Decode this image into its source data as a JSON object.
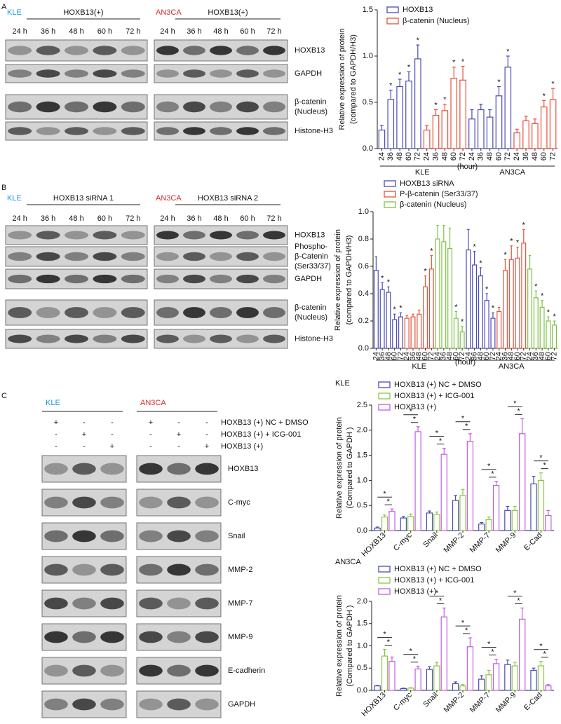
{
  "figure": {
    "panel_a": {
      "letter": "A",
      "cell_lines": [
        "KLE",
        "AN3CA"
      ],
      "conditions": [
        "HOXB13(+)",
        "HOXB13(+)"
      ],
      "times": [
        "24 h",
        "36 h",
        "48 h",
        "60 h",
        "72 h"
      ],
      "rows": [
        "HOXB13",
        "GAPDH",
        [
          "β-catenin",
          "(Nucleus)"
        ],
        "Histone-H3"
      ]
    },
    "panel_b": {
      "letter": "B",
      "cell_lines": [
        "KLE",
        "AN3CA"
      ],
      "conditions": [
        "HOXB13 siRNA 1",
        "HOXB13 siRNA 2"
      ],
      "times": [
        "24 h",
        "36 h",
        "48 h",
        "60 h",
        "72 h"
      ],
      "rows": [
        "HOXB13",
        [
          "Phospho-",
          "β-Catenin",
          "(Ser33/37)"
        ],
        "GAPDH",
        [
          "β-catenin",
          "(Nucleus)"
        ],
        "Histone-H3"
      ]
    },
    "panel_c": {
      "letter": "C",
      "cell_lines": [
        "KLE",
        "AN3CA"
      ],
      "treatments": [
        {
          "name": "HOXB13 (+) NC + DMSO",
          "signs": [
            "+",
            "-",
            "-"
          ]
        },
        {
          "name": "HOXB13 (+) + ICG-001",
          "signs": [
            "-",
            "+",
            "-"
          ]
        },
        {
          "name": "HOXB13 (+)",
          "signs": [
            "-",
            "-",
            "+"
          ]
        }
      ],
      "rows": [
        "HOXB13",
        "C-myc",
        "Snail",
        "MMP-2",
        "MMP-7",
        "MMP-9",
        "E-cadherin",
        "GAPDH"
      ]
    }
  },
  "chart_data": [
    {
      "type": "bar",
      "ylabel": [
        "Relative expression of protein",
        "(compared to GAPDH/H3)"
      ],
      "categories": [
        "24",
        "36",
        "48",
        "60",
        "72",
        "24",
        "36",
        "48",
        "60",
        "72",
        "24",
        "36",
        "48",
        "60",
        "72",
        "24",
        "36",
        "48",
        "60",
        "72"
      ],
      "group_labels": [
        "KLE",
        "AN3CA"
      ],
      "x_unit": "(hour)",
      "ylim": [
        0,
        1.5
      ],
      "yticks": [
        {
          "value": 0,
          "label": "0.0"
        },
        0.5,
        {
          "value": 1,
          "label": "1.0"
        },
        1.5
      ],
      "series": [
        {
          "name": "HOXB13",
          "color": "#4b4bb5",
          "values": [
            0.2,
            0.53,
            0.67,
            0.73,
            0.97,
            null,
            null,
            null,
            null,
            null,
            0.32,
            0.42,
            0.34,
            0.57,
            0.88,
            null,
            null,
            null,
            null,
            null
          ],
          "errors": [
            0.05,
            0.1,
            0.08,
            0.1,
            0.15,
            null,
            null,
            null,
            null,
            null,
            0.1,
            0.06,
            0.08,
            0.1,
            0.12,
            null,
            null,
            null,
            null,
            null
          ],
          "stars": [
            null,
            "*",
            "*",
            "*",
            "*",
            null,
            null,
            null,
            null,
            null,
            null,
            null,
            null,
            "*",
            "*",
            null,
            null,
            null,
            null,
            null
          ]
        },
        {
          "name": "β-catenin (Nucleus)",
          "color": "#e8503a",
          "values": [
            null,
            null,
            null,
            null,
            null,
            0.2,
            0.36,
            0.41,
            0.76,
            0.74,
            null,
            null,
            null,
            null,
            null,
            0.17,
            0.3,
            0.27,
            0.45,
            0.53
          ],
          "errors": [
            null,
            null,
            null,
            null,
            null,
            0.05,
            0.06,
            0.07,
            0.12,
            0.15,
            null,
            null,
            null,
            null,
            null,
            0.04,
            0.05,
            0.05,
            0.07,
            0.12
          ],
          "stars": [
            null,
            null,
            null,
            null,
            null,
            null,
            "*",
            "*",
            "*",
            "*",
            null,
            null,
            null,
            null,
            null,
            null,
            null,
            null,
            "*",
            "*"
          ]
        }
      ]
    },
    {
      "type": "bar",
      "ylabel": [
        "Relative expression of protein",
        "(compared to GAPDH/H3)"
      ],
      "categories": [
        "24",
        "36",
        "48",
        "60",
        "72",
        "24",
        "36",
        "48",
        "60",
        "72",
        "24",
        "36",
        "48",
        "60",
        "72",
        "24",
        "36",
        "48",
        "60",
        "72",
        "24",
        "36",
        "48",
        "60",
        "72",
        "24",
        "36",
        "48",
        "60",
        "72"
      ],
      "group_labels": [
        "KLE",
        "AN3CA"
      ],
      "x_unit": "(hour)",
      "ylim": [
        0,
        1
      ],
      "yticks": [
        {
          "value": 0,
          "label": "0.0"
        },
        0.2,
        0.4,
        0.6,
        0.8,
        {
          "value": 1,
          "label": "1.0"
        }
      ],
      "series": [
        {
          "name": "HOXB13 siRNA",
          "color": "#4b4bb5",
          "values": [
            0.57,
            0.43,
            0.41,
            0.21,
            0.23,
            null,
            null,
            null,
            null,
            null,
            null,
            null,
            null,
            null,
            null,
            0.72,
            0.61,
            0.53,
            0.35,
            0.22,
            null,
            null,
            null,
            null,
            null,
            null,
            null,
            null,
            null,
            null
          ],
          "errors": [
            0.1,
            0.05,
            0.04,
            0.04,
            0.03,
            null,
            null,
            null,
            null,
            null,
            null,
            null,
            null,
            null,
            null,
            0.15,
            0.1,
            0.06,
            0.05,
            0.04,
            null,
            null,
            null,
            null,
            null,
            null,
            null,
            null,
            null,
            null
          ],
          "stars": [
            null,
            "*",
            "*",
            "*",
            "*",
            null,
            null,
            null,
            null,
            null,
            null,
            null,
            null,
            null,
            null,
            null,
            "*",
            "*",
            "*",
            "*",
            null,
            null,
            null,
            null,
            null,
            null,
            null,
            null,
            null,
            null
          ]
        },
        {
          "name": "P-β-catenin (Ser33/37)",
          "color": "#e8503a",
          "values": [
            null,
            null,
            null,
            null,
            null,
            0.22,
            0.23,
            0.25,
            0.45,
            0.58,
            null,
            null,
            null,
            null,
            null,
            null,
            null,
            null,
            null,
            null,
            0.27,
            0.57,
            0.65,
            0.66,
            0.77,
            null,
            null,
            null,
            null,
            null
          ],
          "errors": [
            null,
            null,
            null,
            null,
            null,
            0.02,
            0.02,
            0.03,
            0.08,
            0.1,
            null,
            null,
            null,
            null,
            null,
            null,
            null,
            null,
            null,
            null,
            0.03,
            0.08,
            0.1,
            0.08,
            0.1,
            null,
            null,
            null,
            null,
            null
          ],
          "stars": [
            null,
            null,
            null,
            null,
            null,
            null,
            null,
            null,
            "*",
            "*",
            null,
            null,
            null,
            null,
            null,
            null,
            null,
            null,
            null,
            null,
            null,
            "*",
            "*",
            "*",
            "*",
            null,
            null,
            null,
            null,
            null
          ]
        },
        {
          "name": "β-catenin (Nucleus)",
          "color": "#7cc242",
          "values": [
            null,
            null,
            null,
            null,
            null,
            null,
            null,
            null,
            null,
            null,
            0.8,
            0.78,
            0.73,
            0.22,
            0.12,
            null,
            null,
            null,
            null,
            null,
            null,
            null,
            null,
            null,
            null,
            0.58,
            0.37,
            0.3,
            0.2,
            0.17
          ],
          "errors": [
            null,
            null,
            null,
            null,
            null,
            null,
            null,
            null,
            null,
            null,
            0.1,
            0.12,
            0.15,
            0.05,
            0.04,
            null,
            null,
            null,
            null,
            null,
            null,
            null,
            null,
            null,
            null,
            0.1,
            0.05,
            0.05,
            0.03,
            0.03
          ],
          "stars": [
            null,
            null,
            null,
            null,
            null,
            null,
            null,
            null,
            null,
            null,
            null,
            null,
            null,
            "*",
            "*",
            null,
            null,
            null,
            null,
            null,
            null,
            null,
            null,
            null,
            null,
            null,
            "*",
            "*",
            "*",
            "*"
          ]
        }
      ]
    },
    {
      "type": "bar",
      "title": "KLE",
      "ylabel": [
        "Relative expression of protein",
        "(Compared to GAPDH )"
      ],
      "categories": [
        "HOXB13",
        "C-myc",
        "Snail",
        "MMP-2",
        "MMP-7",
        "MMP-9",
        "E-Cad"
      ],
      "ylim": [
        0,
        2.5
      ],
      "yticks": [
        {
          "value": 0,
          "label": "0.0"
        },
        0.5,
        {
          "value": 1,
          "label": "1.0"
        },
        1.5,
        {
          "value": 2,
          "label": "2.0"
        },
        2.5
      ],
      "series": [
        {
          "name": "HOXB13 (+) NC + DMSO",
          "color": "#4b4bb5",
          "values": [
            0.05,
            0.25,
            0.35,
            0.6,
            0.13,
            0.4,
            0.93
          ],
          "errors": [
            0.02,
            0.03,
            0.04,
            0.1,
            0.03,
            0.08,
            0.15
          ],
          "stars": [
            "*",
            "*",
            "*",
            "*",
            "*",
            "*",
            "*"
          ]
        },
        {
          "name": "HOXB13 (+) + ICG-001",
          "color": "#8cc63f",
          "values": [
            0.27,
            0.28,
            0.32,
            0.7,
            0.22,
            0.4,
            1.0
          ],
          "errors": [
            0.04,
            0.05,
            0.05,
            0.12,
            0.05,
            0.08,
            0.15
          ],
          "stars": [
            "*",
            "*",
            "*",
            "*",
            "*",
            "*",
            "*"
          ]
        },
        {
          "name": "HOXB13 (+)",
          "color": "#c25ce0",
          "values": [
            0.38,
            1.97,
            1.52,
            1.78,
            0.9,
            1.93,
            0.3
          ],
          "errors": [
            0.05,
            0.1,
            0.12,
            0.15,
            0.08,
            0.3,
            0.1
          ]
        }
      ]
    },
    {
      "type": "bar",
      "title": "AN3CA",
      "ylabel": [
        "Relative expression of protein",
        "(Compared to GAPDH )"
      ],
      "categories": [
        "HOXB13",
        "C-myc",
        "Snail",
        "MMP-2",
        "MMP-7",
        "MMP-9",
        "E-Cad"
      ],
      "ylim": [
        0,
        2
      ],
      "yticks": [
        {
          "value": 0,
          "label": "0.0"
        },
        0.5,
        {
          "value": 1,
          "label": "1.0"
        },
        1.5,
        {
          "value": 2,
          "label": "2.0"
        }
      ],
      "series": [
        {
          "name": "HOXB13 (+) NC + DMSO",
          "color": "#4b4bb5",
          "values": [
            0.1,
            0.04,
            0.47,
            0.15,
            0.25,
            0.58,
            0.45
          ],
          "errors": [
            0.01,
            0.01,
            0.06,
            0.04,
            0.08,
            0.1,
            0.05
          ],
          "stars": [
            "*",
            "*",
            "*",
            "*",
            "*",
            "*",
            "*"
          ]
        },
        {
          "name": "HOXB13 (+) + ICG-001",
          "color": "#8cc63f",
          "values": [
            0.77,
            0.05,
            0.55,
            0.1,
            0.35,
            0.55,
            0.55
          ],
          "errors": [
            0.15,
            0.01,
            0.08,
            0.03,
            0.1,
            0.08,
            0.1
          ],
          "stars": [
            "*",
            "*",
            "*",
            "*",
            "*",
            "*",
            "*"
          ]
        },
        {
          "name": "HOXB13 (+)",
          "color": "#c25ce0",
          "values": [
            0.65,
            0.48,
            1.65,
            0.98,
            0.6,
            1.6,
            0.1
          ],
          "errors": [
            0.1,
            0.06,
            0.2,
            0.2,
            0.1,
            0.25,
            0.03
          ]
        }
      ]
    }
  ]
}
